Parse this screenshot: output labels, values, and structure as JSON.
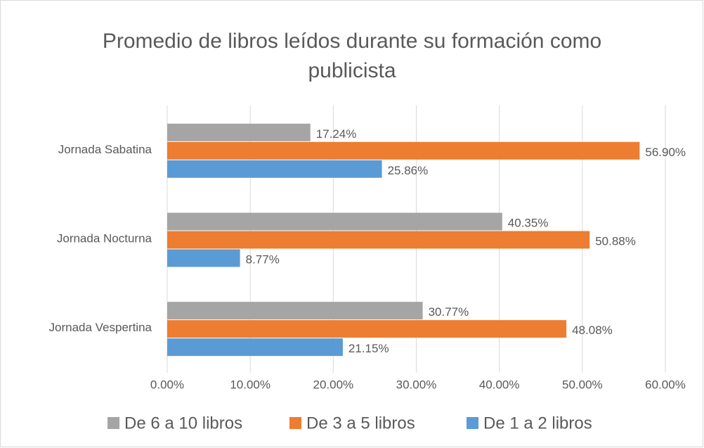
{
  "chart_data": {
    "type": "hbar",
    "title": "Promedio de libros leídos durante su formación como publicista",
    "categories": [
      "Jornada Sabatina",
      "Jornada Nocturna",
      "Jornada Vespertina"
    ],
    "series": [
      {
        "name": "De 6 a 10 libros",
        "color": "#a5a5a5",
        "values": [
          17.24,
          40.35,
          30.77
        ],
        "value_labels": [
          "17.24%",
          "40.35%",
          "30.77%"
        ]
      },
      {
        "name": "De 3 a 5 libros",
        "color": "#ed7d31",
        "values": [
          56.9,
          50.88,
          48.08
        ],
        "value_labels": [
          "56.90%",
          "50.88%",
          "48.08%"
        ]
      },
      {
        "name": "De 1 a 2 libros",
        "color": "#5b9bd5",
        "values": [
          25.86,
          8.77,
          21.15
        ],
        "value_labels": [
          "25.86%",
          "8.77%",
          "21.15%"
        ]
      }
    ],
    "xlim": [
      0,
      60
    ],
    "xticks": [
      {
        "value": 0,
        "label": "0.00%"
      },
      {
        "value": 10,
        "label": "10.00%"
      },
      {
        "value": 20,
        "label": "20.00%"
      },
      {
        "value": 30,
        "label": "30.00%"
      },
      {
        "value": 40,
        "label": "40.00%"
      },
      {
        "value": 50,
        "label": "50.00%"
      },
      {
        "value": 60,
        "label": "60.00%"
      }
    ],
    "grid": true,
    "legend": "bottom"
  }
}
